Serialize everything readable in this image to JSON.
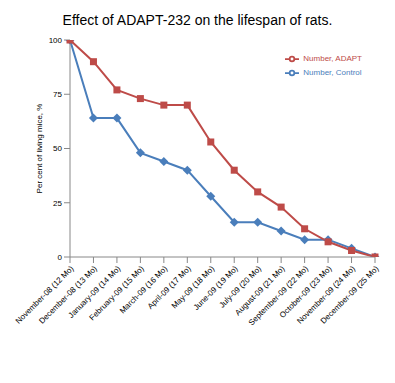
{
  "chart_data": {
    "type": "line",
    "title": "Effect of ADAPT-232 on the lifespan of rats.",
    "y_label": "Per cent of living mice, %",
    "categories": [
      "November-08 (12 Mo)",
      "December-08 (13 Mo)",
      "January-09 (14 Mo)",
      "February-09 (15 Mo)",
      "March-09 (16 Mo)",
      "April-09 (17 Mo)",
      "May-09 (18 Mo)",
      "June-09 (19 Mo)",
      "July-09 (20 Mo)",
      "August-09 (21 Mo)",
      "September-09 (22 Mo)",
      "October-09 (23 Mo)",
      "November-09 (24 Mo)",
      "December-09 (25 Mo)"
    ],
    "series": [
      {
        "name": "Number, Control",
        "color": "#4a7ebb",
        "marker": "diamond",
        "values": [
          100,
          64,
          64,
          48,
          44,
          40,
          28,
          16,
          16,
          12,
          8,
          8,
          4,
          0
        ]
      },
      {
        "name": "Number, ADAPT",
        "color": "#be4b48",
        "marker": "square",
        "values": [
          100,
          90,
          77,
          73,
          70,
          70,
          53,
          40,
          30,
          23,
          13,
          7,
          3,
          0
        ]
      }
    ],
    "ylim": [
      0,
      100
    ],
    "yticks": [
      0,
      25,
      50,
      75,
      100
    ],
    "grid": false,
    "legend": "upper right"
  }
}
